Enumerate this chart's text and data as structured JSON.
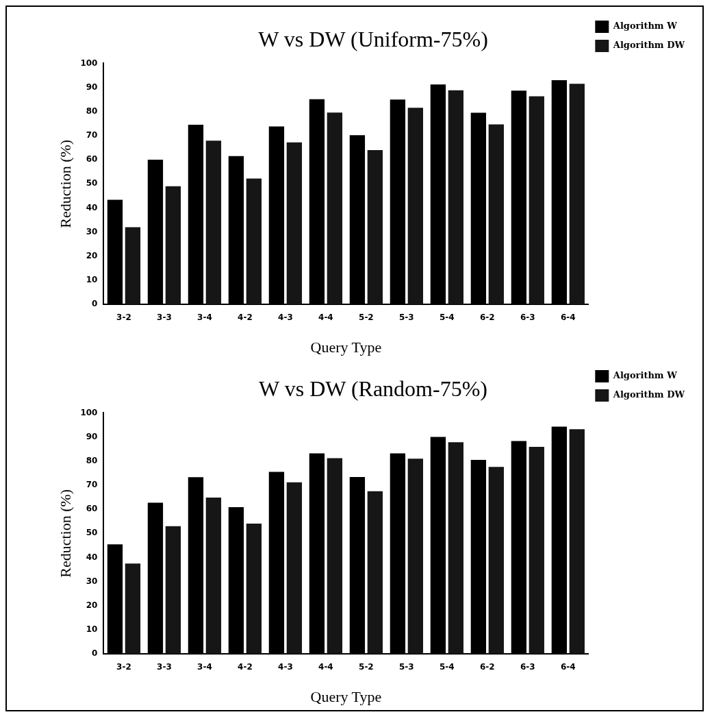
{
  "chart_data": [
    {
      "type": "bar",
      "title": "W vs DW (Uniform-75%)",
      "xlabel": "Query Type",
      "ylabel": "Reduction (%)",
      "categories": [
        "3-2",
        "3-3",
        "3-4",
        "4-2",
        "4-3",
        "4-4",
        "5-2",
        "5-3",
        "5-4",
        "6-2",
        "6-3",
        "6-4"
      ],
      "series": [
        {
          "name": "Algorithm W",
          "color": "#000000",
          "values": [
            43.4,
            60,
            74.5,
            61.5,
            73.8,
            85.1,
            70.2,
            85,
            91.2,
            79.5,
            88.7,
            93
          ]
        },
        {
          "name": "Algorithm DW",
          "color": "#161616",
          "values": [
            32,
            49,
            67.9,
            52.2,
            67.2,
            79.6,
            64,
            81.6,
            88.8,
            74.7,
            86.3,
            91.5
          ]
        }
      ],
      "ylim": [
        0,
        100
      ],
      "yticks": [
        0,
        10,
        20,
        30,
        40,
        50,
        60,
        70,
        80,
        90,
        100
      ],
      "grid": false,
      "legend": "top right"
    },
    {
      "type": "bar",
      "title": "W vs DW (Random-75%)",
      "xlabel": "Query Type",
      "ylabel": "Reduction (%)",
      "categories": [
        "3-2",
        "3-3",
        "3-4",
        "4-2",
        "4-3",
        "4-4",
        "5-2",
        "5-3",
        "5-4",
        "6-2",
        "6-3",
        "6-4"
      ],
      "series": [
        {
          "name": "Algorithm W",
          "color": "#000000",
          "values": [
            45.5,
            62.7,
            73.3,
            60.9,
            75.5,
            83.2,
            73.4,
            83.2,
            90,
            80.5,
            88.3,
            94.3
          ]
        },
        {
          "name": "Algorithm DW",
          "color": "#161616",
          "values": [
            37.5,
            53,
            64.9,
            54.1,
            71.2,
            81.2,
            67.5,
            81,
            87.8,
            77.6,
            85.9,
            93.2
          ]
        }
      ],
      "ylim": [
        0,
        100
      ],
      "yticks": [
        0,
        10,
        20,
        30,
        40,
        50,
        60,
        70,
        80,
        90,
        100
      ],
      "grid": false,
      "legend": "top right"
    }
  ]
}
